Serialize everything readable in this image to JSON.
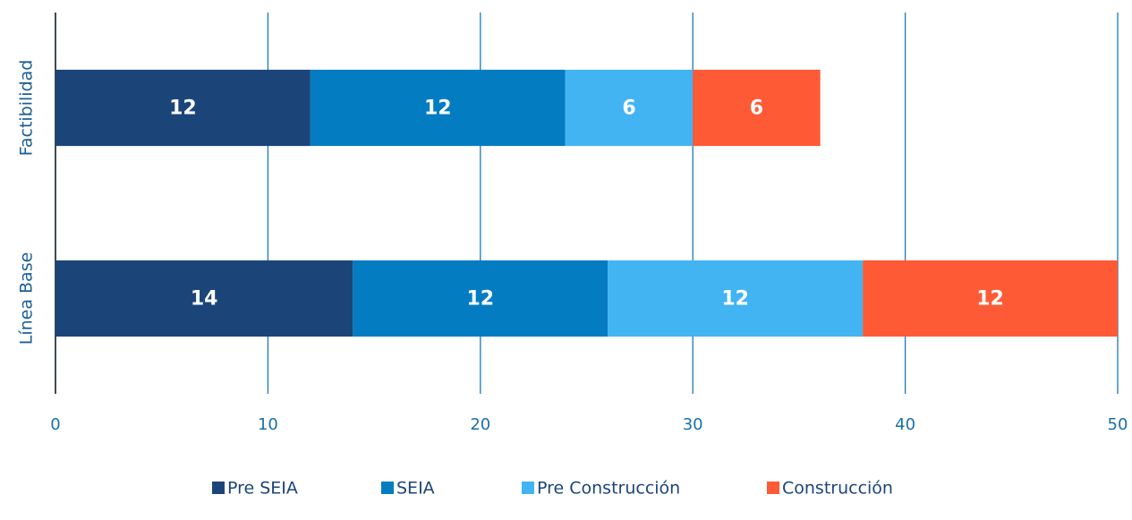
{
  "chart_data": {
    "type": "stacked-barh",
    "categories": [
      "Factibilidad",
      "Línea Base"
    ],
    "series": [
      {
        "name": "Pre SEIA",
        "color": "#1b4579",
        "values": [
          12,
          14
        ]
      },
      {
        "name": "SEIA",
        "color": "#047cc2",
        "values": [
          12,
          12
        ]
      },
      {
        "name": "Pre Construcción",
        "color": "#42b4f2",
        "values": [
          6,
          12
        ]
      },
      {
        "name": "Construcción",
        "color": "#ff5a36",
        "values": [
          6,
          12
        ]
      }
    ],
    "xlim": [
      0,
      50
    ],
    "xticks": [
      0,
      10,
      20,
      30,
      40,
      50
    ],
    "grid": true,
    "legend": "bottom"
  }
}
